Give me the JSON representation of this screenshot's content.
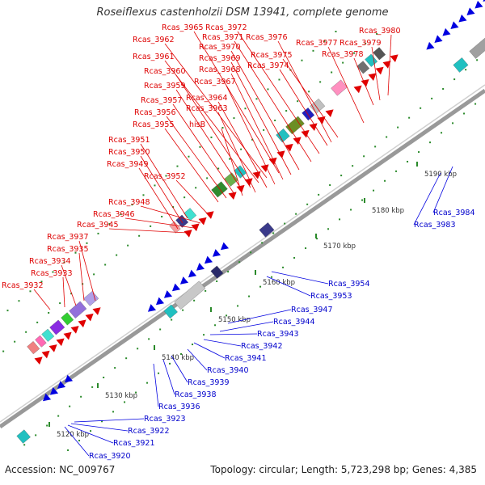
{
  "title": "Roseiflexus castenholzii DSM 13941, complete genome",
  "accession_label": "Accession: NC_009767",
  "topology_label": "Topology: circular; Length: 5,723,298 bp; Genes: 4,385",
  "colors": {
    "forward_gene": "#e00000",
    "reverse_gene": "#0000e0",
    "forward_label": "#dd0000",
    "reverse_label": "#0000cc",
    "backbone": "#999999",
    "tick": "#2a8a2a"
  },
  "ticks": [
    "5120 kbp",
    "5130 kbp",
    "5140 kbp",
    "5150 kbp",
    "5160 kbp",
    "5170 kbp",
    "5180 kbp",
    "5190 kbp"
  ],
  "forward_labels": [
    "Rcas_3932",
    "Rcas_3933",
    "Rcas_3934",
    "Rcas_3935",
    "Rcas_3937",
    "Rcas_3945",
    "Rcas_3946",
    "Rcas_3948",
    "Rcas_3952",
    "Rcas_3949",
    "Rcas_3950",
    "Rcas_3951",
    "Rcas_3955",
    "hisB",
    "Rcas_3956",
    "Rcas_3963",
    "Rcas_3957",
    "Rcas_3964",
    "Rcas_3959",
    "Rcas_3967",
    "Rcas_3960",
    "Rcas_3968",
    "Rcas_3961",
    "Rcas_3969",
    "Rcas_3962",
    "Rcas_3970",
    "Rcas_3965",
    "Rcas_3971",
    "Rcas_3972",
    "Rcas_3976",
    "Rcas_3975",
    "Rcas_3974",
    "Rcas_3977",
    "Rcas_3978",
    "Rcas_3979",
    "Rcas_3980"
  ],
  "reverse_labels": [
    "Rcas_3920",
    "Rcas_3921",
    "Rcas_3922",
    "Rcas_3923",
    "Rcas_3936",
    "Rcas_3938",
    "Rcas_3939",
    "Rcas_3940",
    "Rcas_3941",
    "Rcas_3942",
    "Rcas_3943",
    "Rcas_3944",
    "Rcas_3947",
    "Rcas_3953",
    "Rcas_3954",
    "Rcas_3983",
    "Rcas_3984"
  ]
}
